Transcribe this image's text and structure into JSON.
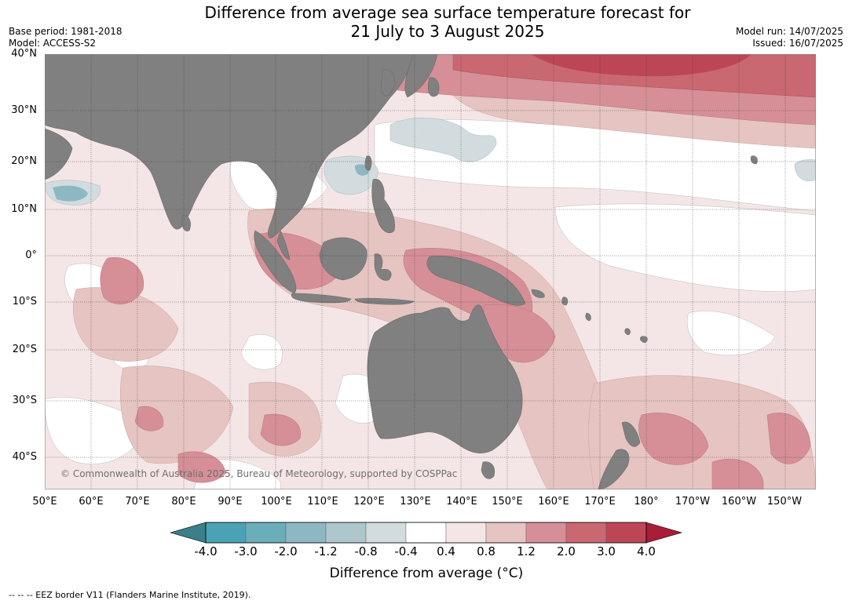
{
  "title_line1": "Difference from average sea surface temperature forecast for",
  "title_line2": "21 July to 3 August 2025",
  "base_period": "Base period: 1981-2018",
  "model": "Model: ACCESS-S2",
  "model_run": "Model run: 14/07/2025",
  "issued": "Issued: 16/07/2025",
  "lat_labels": [
    "40°N",
    "30°N",
    "20°N",
    "10°N",
    "0°",
    "10°S",
    "20°S",
    "30°S",
    "40°S"
  ],
  "lon_labels": [
    "50°E",
    "60°E",
    "70°E",
    "80°E",
    "90°E",
    "100°E",
    "110°E",
    "120°E",
    "130°E",
    "140°E",
    "150°E",
    "160°E",
    "170°E",
    "180°",
    "170°W",
    "160°W",
    "150°W"
  ],
  "copyright": "© Commonwealth of Australia 2025, Bureau of Meteorology, supported by COSPPac",
  "colorbar": {
    "title": "Difference from average (°C)",
    "ticks": [
      "-4.0",
      "-3.0",
      "-2.0",
      "-1.2",
      "-0.8",
      "-0.4",
      "0.4",
      "0.8",
      "1.2",
      "2.0",
      "3.0",
      "4.0"
    ],
    "colors": [
      "#3a7f8a",
      "#4aa3b4",
      "#6aaeba",
      "#8db8c3",
      "#aec7cc",
      "#d2dcdf",
      "#ffffff",
      "#f4e6e6",
      "#e6c4c2",
      "#d68f97",
      "#c96871",
      "#bd4656",
      "#a81d38"
    ]
  },
  "colors": {
    "land": "#808080",
    "ocean_neutral": "#ffffff"
  },
  "footer": "--  --  -- EEZ border V11 (Flanders Marine Institute, 2019)."
}
